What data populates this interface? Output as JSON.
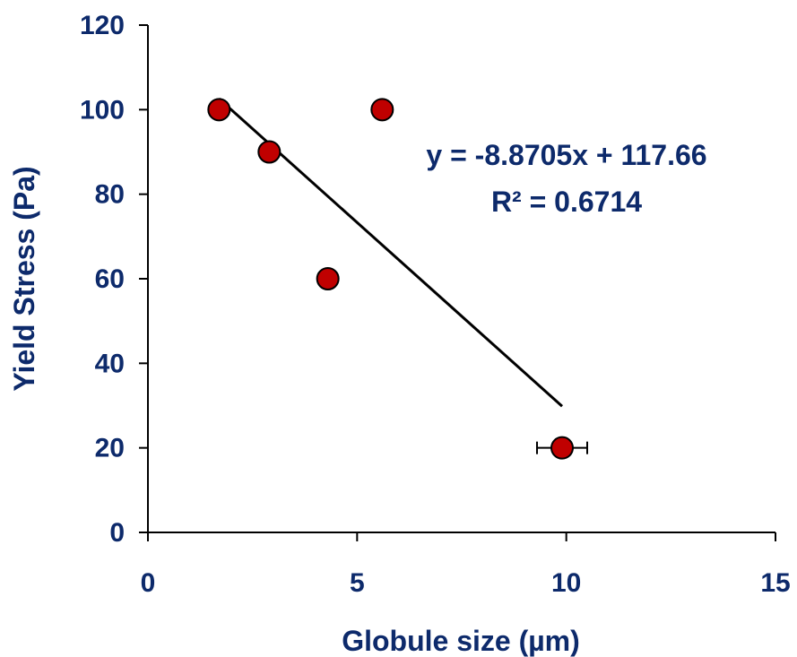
{
  "chart_data": {
    "type": "scatter",
    "xlabel": "Globule size (µm)",
    "ylabel": "Yield Stress (Pa)",
    "xlim": [
      0,
      15
    ],
    "ylim": [
      0,
      120
    ],
    "x_ticks": [
      0,
      5,
      10,
      15
    ],
    "y_ticks": [
      0,
      20,
      40,
      60,
      80,
      100,
      120
    ],
    "grid": false,
    "legend": "none",
    "series": [
      {
        "points": [
          {
            "x": 1.7,
            "y": 100
          },
          {
            "x": 2.9,
            "y": 90
          },
          {
            "x": 4.3,
            "y": 60
          },
          {
            "x": 5.6,
            "y": 100
          },
          {
            "x": 9.9,
            "y": 20,
            "x_error": 0.6
          }
        ],
        "marker_color": "#c00000"
      }
    ],
    "trendline": {
      "type": "linear",
      "slope": -8.8705,
      "intercept": 117.66,
      "x_range": [
        1.7,
        9.9
      ],
      "color": "#000000"
    },
    "annotations": {
      "equation": "y = -8.8705x + 117.66",
      "r_squared": "R² = 0.6714"
    },
    "text_color": "#0d2a6b"
  }
}
